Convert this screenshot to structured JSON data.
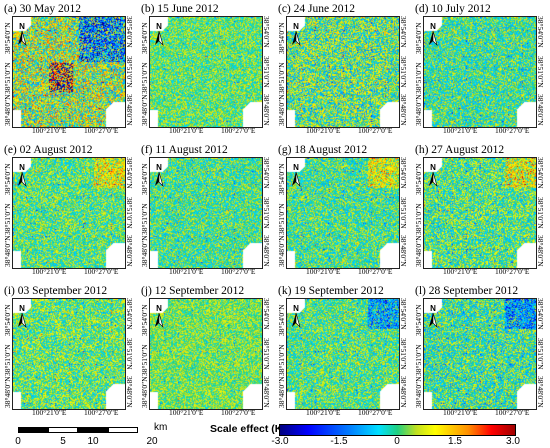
{
  "panels": [
    {
      "title": "(a) 30 May 2012",
      "variant": "a"
    },
    {
      "title": "(b) 15 June 2012",
      "variant": "b"
    },
    {
      "title": "(c) 24 June 2012",
      "variant": "c"
    },
    {
      "title": "(d) 10 July 2012",
      "variant": "d"
    },
    {
      "title": "(e) 02 August 2012",
      "variant": "e"
    },
    {
      "title": "(f) 11 August 2012",
      "variant": "f"
    },
    {
      "title": "(g) 18 August 2012",
      "variant": "g"
    },
    {
      "title": "(h) 27 August 2012",
      "variant": "h"
    },
    {
      "title": "(i) 03 September 2012",
      "variant": "i"
    },
    {
      "title": "(j) 12 September 2012",
      "variant": "j"
    },
    {
      "title": "(k) 19 September 2012",
      "variant": "k"
    },
    {
      "title": "(l) 28 September 2012",
      "variant": "l"
    }
  ],
  "axes": {
    "lat_top": "38°54'0\"N",
    "lat_mid": "38°51'0\"N",
    "lat_bottom": "38°48'0\"N",
    "lon_left": "100°21'0\"E",
    "lon_right": "100°27'0\"E",
    "north_label": "N"
  },
  "scalebar": {
    "ticks": [
      "0",
      "5",
      "10",
      "20"
    ],
    "unit": "km"
  },
  "legend": {
    "title": "Scale effect (K)",
    "ticks": [
      "-3.0",
      "-1.5",
      "0",
      "1.5",
      "3.0"
    ],
    "min": -3.0,
    "max": 3.0
  }
}
